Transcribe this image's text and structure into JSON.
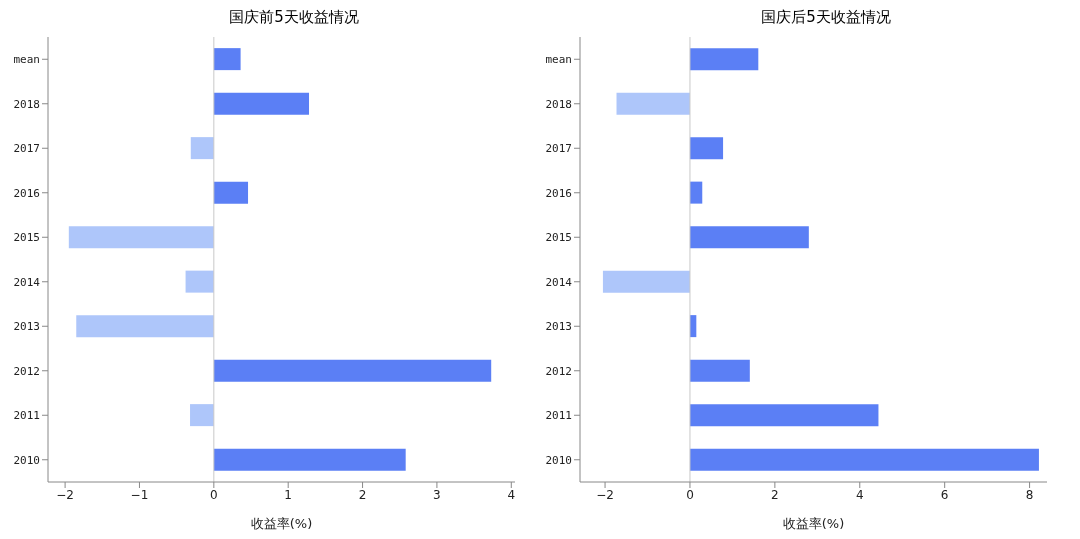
{
  "chart_data": [
    {
      "type": "bar",
      "orientation": "horizontal",
      "title": "国庆前5天收益情况",
      "xlabel": "收益率(%)",
      "categories": [
        "mean",
        "2018",
        "2017",
        "2016",
        "2015",
        "2014",
        "2013",
        "2012",
        "2011",
        "2010"
      ],
      "values": [
        0.36,
        1.28,
        -0.31,
        0.46,
        -1.95,
        -0.38,
        -1.85,
        3.73,
        -0.32,
        2.58
      ],
      "colors": [
        "#5b7ff5",
        "#5b7ff5",
        "#aec6fa",
        "#5b7ff5",
        "#aec6fa",
        "#aec6fa",
        "#aec6fa",
        "#5b7ff5",
        "#aec6fa",
        "#5b7ff5"
      ],
      "xlim": [
        -2.23,
        4.05
      ],
      "xticks": [
        -2,
        -1,
        0,
        1,
        2,
        3,
        4
      ],
      "ref_lines": [
        {
          "axis": "x",
          "value": 0,
          "color": "#c8c8c8"
        }
      ]
    },
    {
      "type": "bar",
      "orientation": "horizontal",
      "title": "国庆后5天收益情况",
      "xlabel": "收益率(%)",
      "categories": [
        "mean",
        "2018",
        "2017",
        "2016",
        "2015",
        "2014",
        "2013",
        "2012",
        "2011",
        "2010"
      ],
      "values": [
        1.61,
        -1.73,
        0.78,
        0.29,
        2.8,
        -2.05,
        0.15,
        1.41,
        4.44,
        8.22
      ],
      "colors": [
        "#5b7ff5",
        "#aec6fa",
        "#5b7ff5",
        "#5b7ff5",
        "#5b7ff5",
        "#aec6fa",
        "#5b7ff5",
        "#5b7ff5",
        "#5b7ff5",
        "#5b7ff5"
      ],
      "xlim": [
        -2.59,
        8.41
      ],
      "xticks": [
        -2,
        0,
        2,
        4,
        6,
        8
      ],
      "ref_lines": [
        {
          "axis": "x",
          "value": 0,
          "color": "#c8c8c8"
        }
      ]
    }
  ]
}
